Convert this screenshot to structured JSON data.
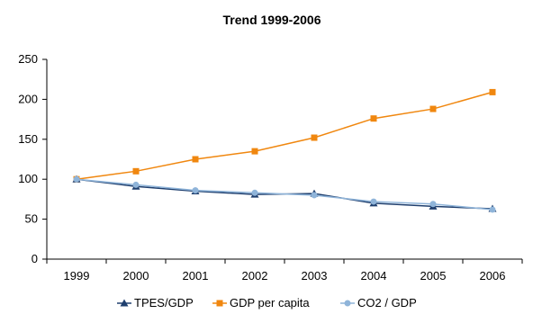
{
  "chart_data": {
    "type": "line",
    "title": "Trend 1999-2006",
    "xlabel": "",
    "ylabel": "",
    "categories": [
      "1999",
      "2000",
      "2001",
      "2002",
      "2003",
      "2004",
      "2005",
      "2006"
    ],
    "ylim": [
      0,
      250
    ],
    "yticks": [
      0,
      50,
      100,
      150,
      200,
      250
    ],
    "grid": false,
    "legend_position": "bottom",
    "series": [
      {
        "name": "TPES/GDP",
        "values": [
          100,
          91,
          85,
          81,
          82,
          70,
          66,
          63
        ],
        "color": "#1f3f6e",
        "marker": "triangle"
      },
      {
        "name": "GDP per capita",
        "values": [
          100,
          110,
          125,
          135,
          152,
          176,
          188,
          209
        ],
        "color": "#f0870f",
        "marker": "square"
      },
      {
        "name": "CO2 / GDP",
        "values": [
          100,
          93,
          86,
          83,
          80,
          72,
          69,
          62
        ],
        "color": "#8fb4d9",
        "marker": "circle"
      }
    ]
  }
}
